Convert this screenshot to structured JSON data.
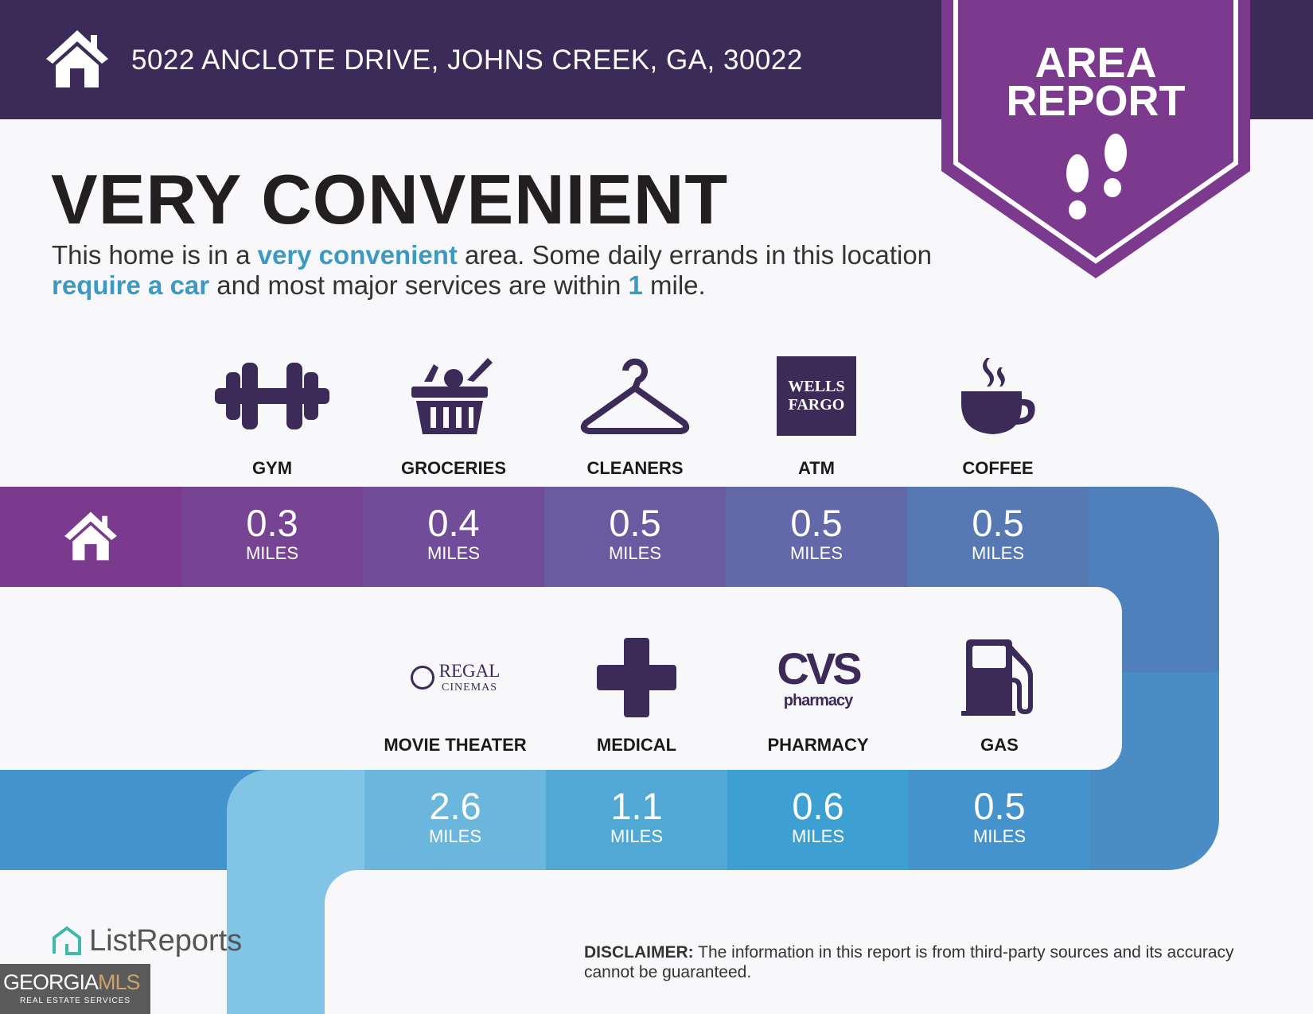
{
  "header": {
    "address": "5022 ANCLOTE DRIVE, JOHNS CREEK, GA, 30022",
    "icon": "home-icon"
  },
  "banner": {
    "line1": "AREA",
    "line2": "REPORT",
    "icon": "footprints-icon",
    "color": "#7b3a8e"
  },
  "title": "VERY CONVENIENT",
  "summary": {
    "t1": "This home is in a ",
    "h1": "very convenient",
    "t2": " area. Some daily errands in this location ",
    "h2": "require a car",
    "t3": " and most major services are within ",
    "h3": "1",
    "t4": " mile."
  },
  "unit": "MILES",
  "top_row": [
    {
      "label": "GYM",
      "value": "0.3",
      "icon": "dumbbell-icon",
      "color": "#774393"
    },
    {
      "label": "GROCERIES",
      "value": "0.4",
      "icon": "grocery-basket-icon",
      "color": "#714c98"
    },
    {
      "label": "CLEANERS",
      "value": "0.5",
      "icon": "hanger-icon",
      "color": "#6a5aa0"
    },
    {
      "label": "ATM",
      "value": "0.5",
      "icon": "wells-fargo-logo",
      "logo_text": [
        "WELLS",
        "FARGO"
      ],
      "color": "#6268a8"
    },
    {
      "label": "COFFEE",
      "value": "0.5",
      "icon": "coffee-cup-icon",
      "color": "#5679b3"
    }
  ],
  "bottom_row": [
    {
      "label": "MOVIE THEATER",
      "value": "2.6",
      "icon": "regal-cinemas-logo",
      "logo_text": [
        "REGAL",
        "CINEMAS"
      ],
      "color": "#6ab6dd"
    },
    {
      "label": "MEDICAL",
      "value": "1.1",
      "icon": "medical-cross-icon",
      "color": "#52a8d5"
    },
    {
      "label": "PHARMACY",
      "value": "0.6",
      "icon": "cvs-pharmacy-logo",
      "logo_text": [
        "CVS",
        "pharmacy"
      ],
      "color": "#3ea0d2"
    },
    {
      "label": "GAS",
      "value": "0.5",
      "icon": "gas-pump-icon",
      "color": "#4593cc"
    }
  ],
  "disclaimer": {
    "bold": "DISCLAIMER:",
    "text": " The information in this report is from third-party sources and its accuracy cannot be guaranteed."
  },
  "footer": {
    "brand": "ListReports",
    "mls_logo": [
      "GEORGIA",
      "MLS",
      "REAL ESTATE SERVICES"
    ]
  }
}
